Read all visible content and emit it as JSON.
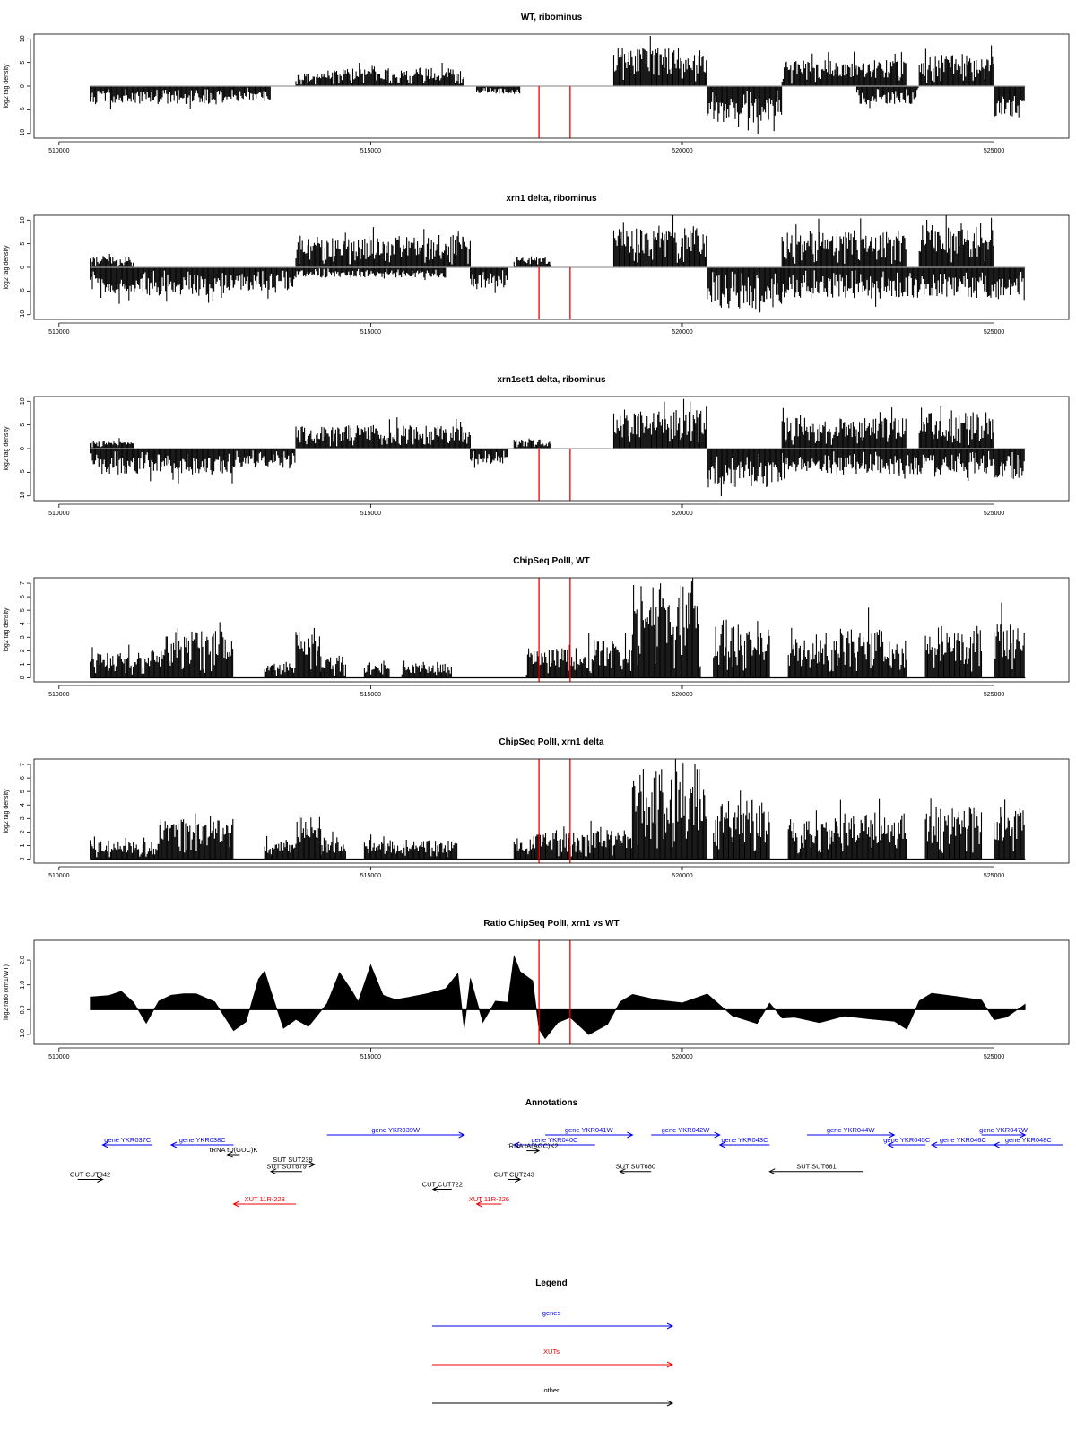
{
  "chart_data": [
    {
      "type": "bar",
      "title": "WT, ribominus",
      "ylabel": "log2 tag density",
      "ylim": [
        -11,
        11
      ],
      "yticks": [
        -10,
        -5,
        0,
        5,
        10
      ],
      "xlim": [
        509600,
        526200
      ],
      "xticks": [
        510000,
        515000,
        520000,
        525000
      ],
      "signed": true,
      "pos_segments": [
        [
          513800,
          514300,
          2.5
        ],
        [
          514300,
          516500,
          3.5
        ],
        [
          518900,
          520400,
          7.5
        ],
        [
          521600,
          523600,
          5
        ],
        [
          523800,
          525000,
          6.5
        ]
      ],
      "neg_segments": [
        [
          510500,
          512800,
          -3.5
        ],
        [
          512800,
          513400,
          -3
        ],
        [
          516700,
          517400,
          -1.5
        ],
        [
          520400,
          521600,
          -7
        ],
        [
          522800,
          523800,
          -3.5
        ],
        [
          525000,
          525500,
          -6
        ]
      ],
      "markers": [
        517700,
        518200
      ]
    },
    {
      "type": "bar",
      "title": "xrn1 delta, ribominus",
      "ylabel": "log2 tag density",
      "ylim": [
        -11,
        11
      ],
      "yticks": [
        -10,
        -5,
        0,
        5,
        10
      ],
      "xlim": [
        509600,
        526200
      ],
      "xticks": [
        510000,
        515000,
        520000,
        525000
      ],
      "signed": true,
      "pos_segments": [
        [
          510500,
          511200,
          2
        ],
        [
          513800,
          516600,
          6
        ],
        [
          517300,
          517900,
          2
        ],
        [
          518900,
          520400,
          8
        ],
        [
          521600,
          523600,
          7
        ],
        [
          523800,
          525000,
          8.5
        ]
      ],
      "neg_segments": [
        [
          510500,
          512800,
          -5.5
        ],
        [
          512800,
          513800,
          -4.5
        ],
        [
          513800,
          516200,
          -2
        ],
        [
          516600,
          517200,
          -4
        ],
        [
          520400,
          521600,
          -8
        ],
        [
          521600,
          525000,
          -6
        ],
        [
          525000,
          525500,
          -6.5
        ]
      ],
      "markers": [
        517700,
        518200
      ]
    },
    {
      "type": "bar",
      "title": "xrn1set1 delta, ribominus",
      "ylabel": "log2 tag density",
      "ylim": [
        -11,
        11
      ],
      "yticks": [
        -10,
        -5,
        0,
        5,
        10
      ],
      "xlim": [
        509600,
        526200
      ],
      "xticks": [
        510000,
        515000,
        520000,
        525000
      ],
      "signed": true,
      "pos_segments": [
        [
          510500,
          511200,
          1.5
        ],
        [
          513800,
          516600,
          4.5
        ],
        [
          517300,
          517900,
          2
        ],
        [
          518900,
          520400,
          7.5
        ],
        [
          521600,
          523600,
          6
        ],
        [
          523800,
          525000,
          7
        ]
      ],
      "neg_segments": [
        [
          510500,
          512800,
          -5
        ],
        [
          512800,
          513800,
          -3.5
        ],
        [
          516600,
          517200,
          -3
        ],
        [
          520400,
          521600,
          -7.5
        ],
        [
          521600,
          525000,
          -5
        ],
        [
          525000,
          525500,
          -6
        ]
      ],
      "markers": [
        517700,
        518200
      ]
    },
    {
      "type": "bar",
      "title": "ChipSeq PolII, WT",
      "ylabel": "log2 tag density",
      "ylim": [
        -0.3,
        7.4
      ],
      "yticks": [
        0,
        1,
        2,
        3,
        4,
        5,
        6,
        7
      ],
      "xlim": [
        509600,
        526200
      ],
      "xticks": [
        510000,
        515000,
        520000,
        525000
      ],
      "signed": false,
      "pos_segments": [
        [
          510500,
          511700,
          1.8
        ],
        [
          511700,
          512800,
          3.2
        ],
        [
          513300,
          513800,
          1
        ],
        [
          513800,
          514200,
          3.5
        ],
        [
          514200,
          514600,
          1.5
        ],
        [
          514900,
          515300,
          1
        ],
        [
          515500,
          516300,
          1
        ],
        [
          517500,
          518500,
          2
        ],
        [
          518500,
          519200,
          2.5
        ],
        [
          519200,
          520300,
          6.5
        ],
        [
          520500,
          521400,
          4
        ],
        [
          521700,
          522400,
          2.8
        ],
        [
          522400,
          523200,
          3.5
        ],
        [
          523200,
          523600,
          2.5
        ],
        [
          523900,
          524800,
          3.5
        ],
        [
          525000,
          525500,
          3.8
        ]
      ],
      "neg_segments": [],
      "markers": [
        517700,
        518200
      ]
    },
    {
      "type": "bar",
      "title": "ChipSeq PolII, xrn1 delta",
      "ylabel": "log2 tag density",
      "ylim": [
        -0.3,
        7.4
      ],
      "yticks": [
        0,
        1,
        2,
        3,
        4,
        5,
        6,
        7
      ],
      "xlim": [
        509600,
        526200
      ],
      "xticks": [
        510000,
        515000,
        520000,
        525000
      ],
      "signed": false,
      "pos_segments": [
        [
          510500,
          511600,
          1.2
        ],
        [
          511600,
          512800,
          2.8
        ],
        [
          513300,
          513800,
          1.2
        ],
        [
          513800,
          514200,
          3
        ],
        [
          514200,
          514600,
          1.5
        ],
        [
          514900,
          516400,
          1.3
        ],
        [
          517300,
          517600,
          1.5
        ],
        [
          517600,
          518500,
          1.8
        ],
        [
          518500,
          519200,
          2
        ],
        [
          519200,
          520400,
          6.5
        ],
        [
          520500,
          521400,
          4
        ],
        [
          521700,
          522400,
          2.8
        ],
        [
          522400,
          523600,
          3.2
        ],
        [
          523900,
          524800,
          3.6
        ],
        [
          525000,
          525500,
          3.5
        ]
      ],
      "neg_segments": [],
      "markers": [
        517700,
        518200
      ]
    },
    {
      "type": "area",
      "title": "Ratio ChipSeq PolII, xrn1 vs WT",
      "ylabel": "log2 ratio (xrn1/WT)",
      "ylim": [
        -1.4,
        2.8
      ],
      "yticks": [
        -1,
        0,
        1,
        2
      ],
      "yticklabels": [
        "-1.0",
        "0.0",
        "1.0",
        "2.0"
      ],
      "xlim": [
        509600,
        526200
      ],
      "xticks": [
        510000,
        515000,
        520000,
        525000
      ],
      "x": [
        510500,
        510800,
        511000,
        511200,
        511400,
        511600,
        511800,
        512000,
        512200,
        512500,
        512800,
        513000,
        513200,
        513300,
        513400,
        513600,
        513800,
        514000,
        514300,
        514500,
        514700,
        514800,
        515000,
        515200,
        515400,
        515600,
        515900,
        516200,
        516400,
        516500,
        516600,
        516800,
        517000,
        517200,
        517300,
        517400,
        517600,
        517700,
        517800,
        518000,
        518200,
        518500,
        518800,
        519000,
        519200,
        519600,
        520000,
        520400,
        520800,
        521200,
        521400,
        521600,
        521800,
        522200,
        522600,
        523000,
        523400,
        523600,
        523800,
        524000,
        524400,
        524800,
        525000,
        525200,
        525500
      ],
      "y": [
        0.5,
        0.6,
        0.8,
        0.3,
        -0.6,
        0.4,
        0.6,
        0.7,
        0.6,
        0.3,
        -0.8,
        -0.5,
        1.2,
        1.5,
        0.8,
        -0.7,
        -0.4,
        -0.7,
        0.3,
        1.5,
        0.8,
        0.3,
        1.8,
        0.6,
        0.4,
        0.5,
        0.7,
        0.8,
        1.5,
        -0.8,
        1.3,
        -0.5,
        0.3,
        0.3,
        2.2,
        1.5,
        1.2,
        -0.8,
        -1.2,
        -0.5,
        -0.3,
        -1.0,
        -0.6,
        0.3,
        0.6,
        0.4,
        0.3,
        0.6,
        -0.3,
        -0.6,
        0.3,
        -0.4,
        -0.3,
        -0.5,
        -0.3,
        -0.4,
        -0.5,
        -0.8,
        0.3,
        0.6,
        0.5,
        0.4,
        -0.4,
        -0.3,
        0.2
      ],
      "markers": [
        517700,
        518200
      ]
    }
  ],
  "annotations": {
    "title": "Annotations",
    "xlim": [
      509600,
      526200
    ],
    "features": [
      {
        "label": "gene YKR037C",
        "start": 510700,
        "end": 511500,
        "color": "#0000ee",
        "dir": "left",
        "row": 0
      },
      {
        "label": "gene YKR038C",
        "start": 511800,
        "end": 512800,
        "color": "#0000ee",
        "dir": "left",
        "row": 0
      },
      {
        "label": "gene YKR039W",
        "start": 514300,
        "end": 516500,
        "color": "#0000ee",
        "dir": "right",
        "row": -1
      },
      {
        "label": "gene YKR041W",
        "start": 517800,
        "end": 519200,
        "color": "#0000ee",
        "dir": "right",
        "row": -1
      },
      {
        "label": "gene YKR040C",
        "start": 517300,
        "end": 518600,
        "color": "#0000ee",
        "dir": "left",
        "row": 0
      },
      {
        "label": "gene YKR042W",
        "start": 519500,
        "end": 520600,
        "color": "#0000ee",
        "dir": "right",
        "row": -1
      },
      {
        "label": "gene YKR043C",
        "start": 520600,
        "end": 521400,
        "color": "#0000ee",
        "dir": "left",
        "row": 0
      },
      {
        "label": "gene YKR044W",
        "start": 522000,
        "end": 523400,
        "color": "#0000ee",
        "dir": "right",
        "row": -1
      },
      {
        "label": "gene YKR045C",
        "start": 523300,
        "end": 523900,
        "color": "#0000ee",
        "dir": "left",
        "row": 0
      },
      {
        "label": "gene YKR046C",
        "start": 524000,
        "end": 525000,
        "color": "#0000ee",
        "dir": "left",
        "row": 0
      },
      {
        "label": "gene YKR047W",
        "start": 524800,
        "end": 525500,
        "color": "#0000ee",
        "dir": "right",
        "row": -1
      },
      {
        "label": "gene YKR048C",
        "start": 525000,
        "end": 526100,
        "color": "#0000ee",
        "dir": "left",
        "row": 0
      },
      {
        "label": "tRNA tD(GUC)K",
        "start": 512700,
        "end": 512900,
        "color": "#000000",
        "dir": "left",
        "row": 1
      },
      {
        "label": "tRNA tA(AGC)K2",
        "start": 517500,
        "end": 517700,
        "color": "#000000",
        "dir": "right",
        "row": 0.6
      },
      {
        "label": "SUT SUT239",
        "start": 513400,
        "end": 514100,
        "color": "#000000",
        "dir": "right",
        "row": 2
      },
      {
        "label": "SUT SUT679",
        "start": 513400,
        "end": 513900,
        "color": "#000000",
        "dir": "left",
        "row": 2.7
      },
      {
        "label": "SUT SUT680",
        "start": 519000,
        "end": 519500,
        "color": "#000000",
        "dir": "left",
        "row": 2.7
      },
      {
        "label": "SUT SUT681",
        "start": 521400,
        "end": 522900,
        "color": "#000000",
        "dir": "left",
        "row": 2.7
      },
      {
        "label": "CUT CUT342",
        "start": 510300,
        "end": 510700,
        "color": "#000000",
        "dir": "right",
        "row": 3.5
      },
      {
        "label": "CUT CUT243",
        "start": 517200,
        "end": 517400,
        "color": "#000000",
        "dir": "right",
        "row": 3.5
      },
      {
        "label": "CUT CUT722",
        "start": 516000,
        "end": 516300,
        "color": "#000000",
        "dir": "left",
        "row": 4.5
      },
      {
        "label": "XUT 11R-223",
        "start": 512800,
        "end": 513800,
        "color": "#ee0000",
        "dir": "left",
        "row": 6
      },
      {
        "label": "XUT 11R-226",
        "start": 516700,
        "end": 517100,
        "color": "#ee0000",
        "dir": "left",
        "row": 6
      }
    ]
  },
  "legend": {
    "title": "Legend",
    "items": [
      {
        "label": "genes",
        "color": "#0000ee"
      },
      {
        "label": "XUTs",
        "color": "#ee0000"
      },
      {
        "label": "other",
        "color": "#000000"
      }
    ]
  }
}
